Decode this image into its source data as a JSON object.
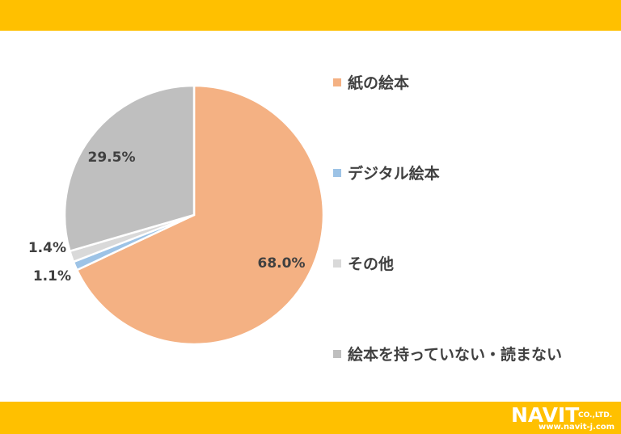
{
  "theme": {
    "band_color": "#FFC000",
    "text_color": "#404040"
  },
  "chart_data": {
    "type": "pie",
    "categories": [
      "紙の絵本",
      "デジタル絵本",
      "その他",
      "絵本を持っていない・読まない"
    ],
    "values": [
      68.0,
      1.1,
      1.4,
      29.5
    ],
    "labels": [
      "68.0%",
      "1.1%",
      "1.4%",
      "29.5%"
    ],
    "colors": [
      "#F4B183",
      "#9DC3E6",
      "#D9D9D9",
      "#BFBFBF"
    ],
    "title": "",
    "legend_position": "right"
  },
  "logo": {
    "name": "NAVIT",
    "suffix": "CO.,LTD.",
    "url": "www.navit-j.com",
    "icon": "navit-logo-icon"
  }
}
